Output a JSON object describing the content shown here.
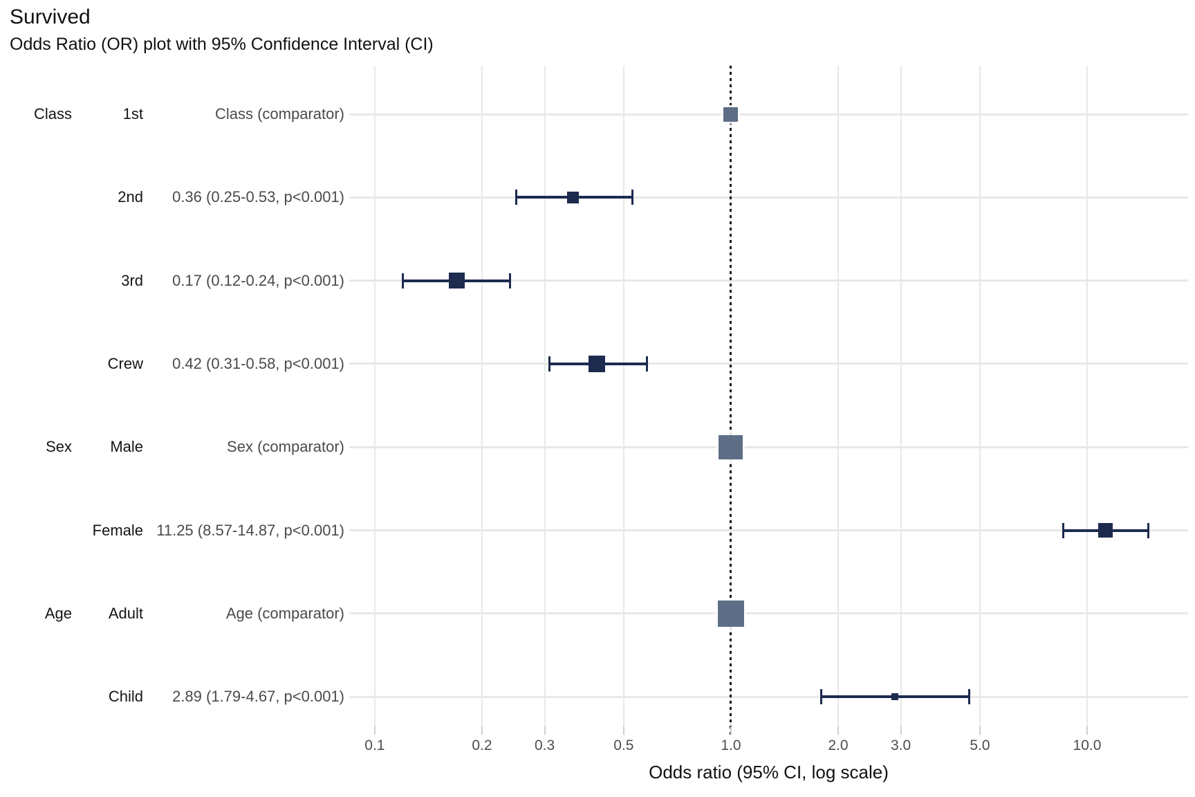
{
  "chart_data": {
    "type": "scatter",
    "subtype": "forest-plot-odds-ratio",
    "title": "Survived",
    "subtitle": "Odds Ratio (OR) plot with 95% Confidence Interval (CI)",
    "xlabel": "Odds ratio (95% CI, log scale)",
    "x_scale": "log",
    "xlim": [
      0.0848,
      19.21
    ],
    "reference_line": 1.0,
    "grid": true,
    "legend_position": "none",
    "x_ticks": [
      {
        "value": 0.1,
        "label": "0.1"
      },
      {
        "value": 0.2,
        "label": "0.2"
      },
      {
        "value": 0.3,
        "label": "0.3"
      },
      {
        "value": 0.5,
        "label": "0.5"
      },
      {
        "value": 1.0,
        "label": "1.0"
      },
      {
        "value": 2.0,
        "label": "2.0"
      },
      {
        "value": 3.0,
        "label": "3.0"
      },
      {
        "value": 5.0,
        "label": "5.0"
      },
      {
        "value": 10.0,
        "label": "10.0"
      }
    ],
    "rows": [
      {
        "group": "Class",
        "level": "1st",
        "estimate_label": "Class (comparator)",
        "or": 1.0,
        "ci_low": null,
        "ci_high": null,
        "p": null,
        "comparator": true,
        "marker_size": 21
      },
      {
        "group": "",
        "level": "2nd",
        "estimate_label": "0.36 (0.25-0.53, p<0.001)",
        "or": 0.36,
        "ci_low": 0.25,
        "ci_high": 0.53,
        "p": "<0.001",
        "comparator": false,
        "marker_size": 17
      },
      {
        "group": "",
        "level": "3rd",
        "estimate_label": "0.17 (0.12-0.24, p<0.001)",
        "or": 0.17,
        "ci_low": 0.12,
        "ci_high": 0.24,
        "p": "<0.001",
        "comparator": false,
        "marker_size": 23
      },
      {
        "group": "",
        "level": "Crew",
        "estimate_label": "0.42 (0.31-0.58, p<0.001)",
        "or": 0.42,
        "ci_low": 0.31,
        "ci_high": 0.58,
        "p": "<0.001",
        "comparator": false,
        "marker_size": 24
      },
      {
        "group": "Sex",
        "level": "Male",
        "estimate_label": "Sex (comparator)",
        "or": 1.0,
        "ci_low": null,
        "ci_high": null,
        "p": null,
        "comparator": true,
        "marker_size": 35
      },
      {
        "group": "",
        "level": "Female",
        "estimate_label": "11.25 (8.57-14.87, p<0.001)",
        "or": 11.25,
        "ci_low": 8.57,
        "ci_high": 14.87,
        "p": "<0.001",
        "comparator": false,
        "marker_size": 21
      },
      {
        "group": "Age",
        "level": "Adult",
        "estimate_label": "Age (comparator)",
        "or": 1.0,
        "ci_low": null,
        "ci_high": null,
        "p": null,
        "comparator": true,
        "marker_size": 38
      },
      {
        "group": "",
        "level": "Child",
        "estimate_label": "2.89 (1.79-4.67, p<0.001)",
        "or": 2.89,
        "ci_low": 1.79,
        "ci_high": 4.67,
        "p": "<0.001",
        "comparator": false,
        "marker_size": 10
      }
    ],
    "colors": {
      "estimate_marker": "#1d2b4f",
      "comparator_marker": "#5d6e86",
      "gridline": "#e8e8e8",
      "reference_line": "#141414",
      "axis_text": "#4d4d4d",
      "estimate_text": "#4a4a4a",
      "label_text": "#141414",
      "tick_mark": "#cfcfcf",
      "background": "#ffffff"
    }
  }
}
